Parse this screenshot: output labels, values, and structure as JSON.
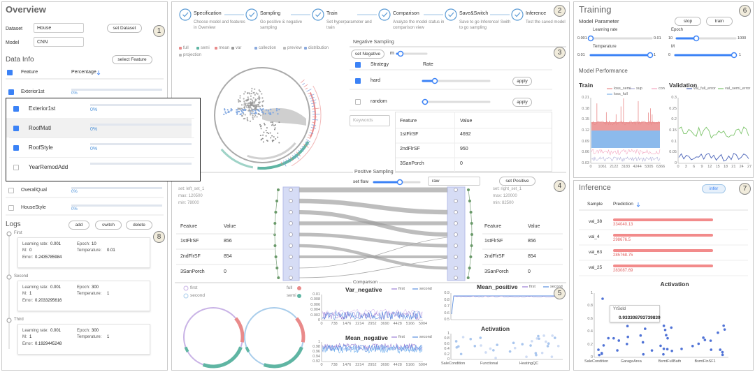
{
  "overview": {
    "title": "Overview",
    "badge": "1",
    "dataset_label": "Dataset",
    "dataset": "House",
    "model_label": "Model",
    "model": "CNN",
    "set_dataset": "set Dataset",
    "data_info": "Data Info",
    "select_feature": "select Feature",
    "columns": [
      "Feature",
      "Percentage"
    ],
    "rows": [
      {
        "feature": "Exterior1st",
        "percentage": "0%",
        "checked": true
      },
      {
        "feature": "OverallQual",
        "percentage": "0%",
        "checked": false
      },
      {
        "feature": "HouseStyle",
        "percentage": "0%",
        "checked": false
      }
    ],
    "dropdown": [
      {
        "feature": "Exterior1st",
        "percentage": "0%",
        "checked": true
      },
      {
        "feature": "RoofMatl",
        "percentage": "0%",
        "checked": true
      },
      {
        "feature": "RoofStyle",
        "percentage": "0%",
        "checked": true
      },
      {
        "feature": "YearRemodAdd",
        "checked": false
      }
    ]
  },
  "logs": {
    "title": "Logs",
    "badge": "8",
    "buttons": [
      "add",
      "switch",
      "delete"
    ],
    "labels": {
      "lr": "Learning rate:",
      "epoch": "Epoch:",
      "m": "M:",
      "temp": "Temperature:",
      "error": "Error:"
    },
    "entries": [
      {
        "name": "First",
        "lr": 0.001,
        "epoch": 10,
        "m": 0,
        "temp": 0.01,
        "error": 0.2435785984
      },
      {
        "name": "Second",
        "lr": 0.001,
        "epoch": 300,
        "m": 1,
        "temp": 1,
        "error": 0.2033295616
      },
      {
        "name": "Third",
        "lr": 0.001,
        "epoch": 300,
        "m": 1,
        "temp": 1,
        "error": 0.1929445248
      }
    ]
  },
  "steps": {
    "badge": "2",
    "items": [
      {
        "title": "Specification",
        "desc": "Choose model and features in Overview"
      },
      {
        "title": "Sampling",
        "desc": "Go positive & negative sampling"
      },
      {
        "title": "Train",
        "desc": "Set hyperparameter and train"
      },
      {
        "title": "Comparison",
        "desc": "Analyze the model status in comparison view"
      },
      {
        "title": "Save&Switch",
        "desc": "Save to go Inference/ Swith to go sampling"
      },
      {
        "title": "Inference",
        "desc": "Test the saved model"
      }
    ]
  },
  "view_legend": [
    {
      "name": "full",
      "color": "#e98a8a"
    },
    {
      "name": "semi",
      "color": "#5fb5a3"
    },
    {
      "name": "mean",
      "color": "#e98a8a"
    },
    {
      "name": "var",
      "color": "#999999"
    },
    {
      "name": "collection",
      "color": "#8aa9dd"
    },
    {
      "name": "preview",
      "color": "#bbbbbb"
    },
    {
      "name": "distribution",
      "color": "#8aa9dd"
    },
    {
      "name": "projection",
      "color": "#bbbbbb"
    }
  ],
  "negative": {
    "title": "Negative Sampling",
    "set": "set Negative",
    "m": "m",
    "badge": "3",
    "columns": [
      "Strategy",
      "Rate"
    ],
    "apply": "apply",
    "strategies": [
      {
        "name": "hard",
        "checked": true
      },
      {
        "name": "random",
        "checked": false
      }
    ],
    "keywords": "Keywords",
    "table": {
      "columns": [
        "Feature",
        "Value"
      ],
      "rows": [
        [
          "1stFlrSF",
          4692
        ],
        [
          "2ndFlrSF",
          950
        ],
        [
          "3SanPorch",
          0
        ]
      ]
    }
  },
  "positive": {
    "title": "Positive Sampling",
    "set_flow": "set flow",
    "flow": "raw",
    "set": "set Positive",
    "badge": "4",
    "columns": [
      "Feature",
      "Value"
    ],
    "left": {
      "set": "set: left_set_1",
      "max": "max: 120500",
      "min": "min: 78000",
      "rows": [
        [
          "1stFlrSF",
          856
        ],
        [
          "2ndFlrSF",
          854
        ],
        [
          "3SanPorch",
          0
        ]
      ]
    },
    "right": {
      "set": "set: right_set_1",
      "max": "max: 120000",
      "min": "min: 82500",
      "rows": [
        [
          "1stFlrSF",
          856
        ],
        [
          "2ndFlrSF",
          854
        ],
        [
          "3SanPorch",
          0
        ]
      ]
    }
  },
  "comparison": {
    "title": "Comparison",
    "badge": "5",
    "legend": [
      {
        "name": "first",
        "color": "#c9b3e6"
      },
      {
        "name": "second",
        "color": "#a9cdeb"
      },
      {
        "name": "full",
        "color": "#e98a8a"
      },
      {
        "name": "semi",
        "color": "#5fb5a3"
      }
    ],
    "charts": [
      {
        "title": "Var_negative",
        "legend": [
          {
            "name": "first",
            "color": "#9b7fd4"
          },
          {
            "name": "second",
            "color": "#5b8fe0"
          }
        ],
        "yticks": [
          0.01,
          0.008,
          0.006,
          0.004,
          0.002,
          0
        ],
        "xticks": [
          0,
          738,
          1476,
          2214,
          2952,
          3690,
          4428,
          5166,
          5904
        ]
      },
      {
        "title": "Mean_negative",
        "legend": [
          {
            "name": "first",
            "color": "#9b7fd4"
          },
          {
            "name": "second",
            "color": "#5b8fe0"
          }
        ],
        "yticks": [
          1,
          0.98,
          0.96,
          0.94,
          0.92
        ],
        "xticks": [
          0,
          738,
          1476,
          2214,
          2952,
          3690,
          4428,
          5166,
          5904
        ]
      },
      {
        "title": "Mean_positive",
        "legend": [
          {
            "name": "first",
            "color": "#9b7fd4"
          },
          {
            "name": "second",
            "color": "#5b8fe0"
          }
        ],
        "yticks": [
          0.9,
          0.8,
          0.7,
          0.6,
          0.5
        ]
      },
      {
        "title": "Activation",
        "yticks": [
          1,
          0.8,
          0.6,
          0.4,
          0.2,
          0
        ],
        "xlabels": [
          "SaleCondition",
          "Functional",
          "HeatingQC"
        ]
      }
    ]
  },
  "training": {
    "title": "Training",
    "badge": "6",
    "param_title": "Model Parameter",
    "buttons": [
      "stop",
      "train"
    ],
    "params": [
      {
        "name": "Learning rate",
        "min": 0.001,
        "max": 0.01
      },
      {
        "name": "Epoch",
        "min": 10,
        "max": 1000
      },
      {
        "name": "Temperature",
        "min": 0.01,
        "max": 1
      },
      {
        "name": "M",
        "min": 0,
        "max": 1
      }
    ],
    "perf_title": "Model Performance",
    "charts": [
      {
        "title": "Train",
        "legend": [
          {
            "name": "loss_semi",
            "color": "#e98a8a"
          },
          {
            "name": "sup",
            "color": "#b0b0d8"
          },
          {
            "name": "con",
            "color": "#f3a6c0"
          },
          {
            "name": "loss_full",
            "color": "#7fb2ea"
          }
        ],
        "yticks": [
          0.21,
          0.18,
          0.15,
          0.12,
          0.09,
          0.06,
          0.03
        ],
        "xticks": [
          0,
          1061,
          2122,
          3183,
          4244,
          5305,
          6366
        ]
      },
      {
        "title": "Validation",
        "legend": [
          {
            "name": "val_full_error",
            "color": "#4a63b8"
          },
          {
            "name": "val_semi_error",
            "color": "#7cc46a"
          }
        ],
        "yticks": [
          0.3,
          0.25,
          0.2,
          0.15,
          0.1,
          0.05,
          0
        ],
        "xticks": [
          0,
          3,
          6,
          9,
          12,
          15,
          18,
          21,
          24,
          27
        ]
      }
    ]
  },
  "inference": {
    "title": "Inference",
    "badge": "7",
    "infer": "infer",
    "columns": [
      "Sample",
      "Prediction"
    ],
    "rows": [
      [
        "val_38",
        334040.13
      ],
      [
        "val_4",
        298676.5
      ],
      [
        "val_63",
        285768.75
      ],
      [
        "val_25",
        283087.69
      ]
    ],
    "chart": {
      "title": "Activation",
      "yticks": [
        1,
        0.8,
        0.6,
        0.4,
        0.2,
        0
      ],
      "xlabels": [
        "SaleCondition",
        "GarageArea",
        "BsmtFullBath",
        "BsmtFinSF1"
      ],
      "tooltip": {
        "label": "YrSold",
        "value": 0.933308793739839
      }
    }
  }
}
